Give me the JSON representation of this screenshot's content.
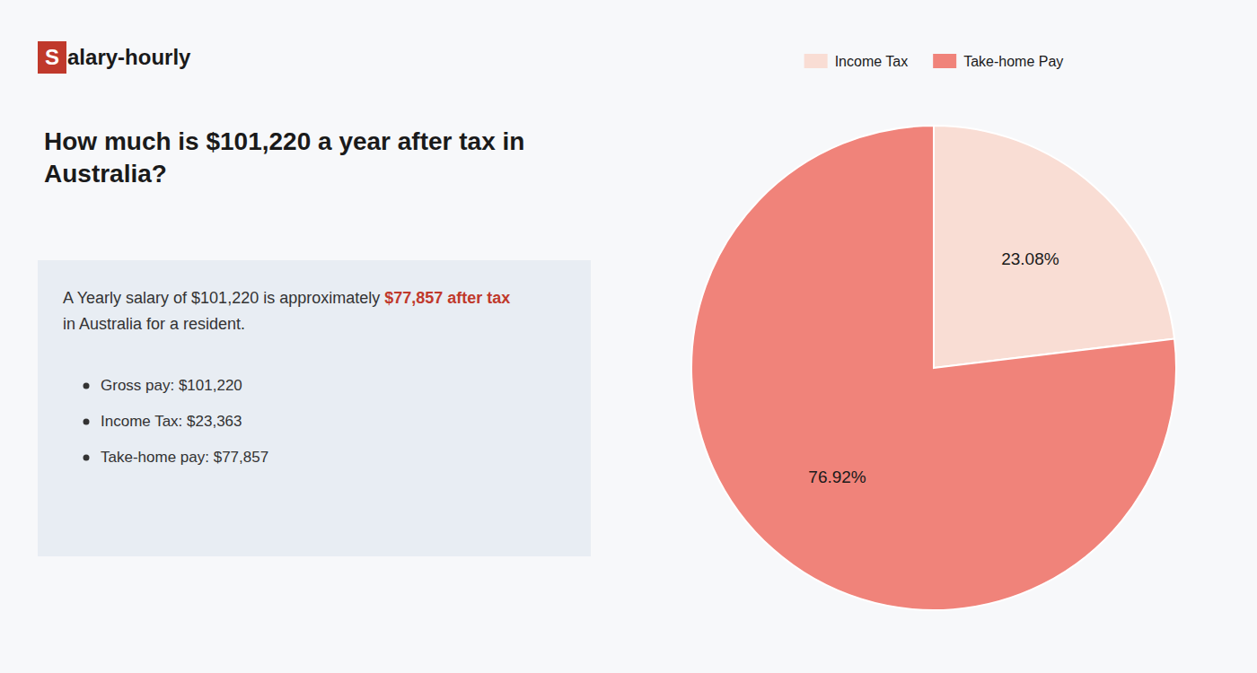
{
  "chart_data": {
    "type": "pie",
    "title": "How much is $101,220 a year after tax in\nAustralia?",
    "annotations": [
      "S",
      "alary-hourly",
      "A Yearly salary of $101,220 is approximately ",
      "$77,857 after tax",
      "in Australia for a resident.",
      "Gross pay: $101,220",
      "Income Tax: $23,363",
      "Take-home pay: $77,857"
    ],
    "categories": [
      "Income Tax",
      "Take-home Pay"
    ],
    "values": [
      23.08,
      76.92
    ],
    "value_labels": [
      "23.08%",
      "76.92%"
    ],
    "colors": [
      "#f9ddd4",
      "#f0837a"
    ],
    "data_labels": true,
    "legend": "top"
  }
}
